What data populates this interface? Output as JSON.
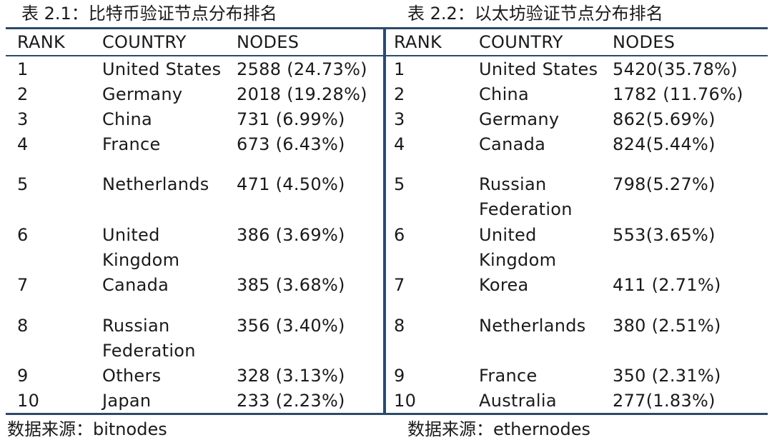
{
  "left_table": {
    "title": "表 2.1：比特币验证节点分布排名",
    "headers": {
      "rank": "RANK",
      "country": "COUNTRY",
      "nodes": "NODES"
    },
    "rows": [
      {
        "rank": "1",
        "country": "United States",
        "nodes": "2588 (24.73%)"
      },
      {
        "rank": "2",
        "country": "Germany",
        "nodes": "2018 (19.28%)"
      },
      {
        "rank": "3",
        "country": "China",
        "nodes": "731 (6.99%)"
      },
      {
        "rank": "4",
        "country": "France",
        "nodes": "673 (6.43%)"
      },
      {
        "rank": "5",
        "country": "Netherlands",
        "nodes": "471 (4.50%)"
      },
      {
        "rank": "6",
        "country": "United Kingdom",
        "nodes": "386 (3.69%)"
      },
      {
        "rank": "7",
        "country": "Canada",
        "nodes": "385 (3.68%)"
      },
      {
        "rank": "8",
        "country": "Russian Federation",
        "nodes": "356 (3.40%)"
      },
      {
        "rank": "9",
        "country": "Others",
        "nodes": "328 (3.13%)"
      },
      {
        "rank": "10",
        "country": "Japan",
        "nodes": "233 (2.23%)"
      }
    ],
    "source": "数据来源：bitnodes"
  },
  "right_table": {
    "title": "表 2.2：以太坊验证节点分布排名",
    "headers": {
      "rank": "RANK",
      "country": "COUNTRY",
      "nodes": "NODES"
    },
    "rows": [
      {
        "rank": "1",
        "country": "United States",
        "nodes": "5420(35.78%)"
      },
      {
        "rank": "2",
        "country": "China",
        "nodes": "1782 (11.76%)"
      },
      {
        "rank": "3",
        "country": "Germany",
        "nodes": "862(5.69%)"
      },
      {
        "rank": "4",
        "country": "Canada",
        "nodes": "824(5.44%)"
      },
      {
        "rank": "5",
        "country": "Russian Federation",
        "nodes": "798(5.27%)"
      },
      {
        "rank": "6",
        "country": "United Kingdom",
        "nodes": "553(3.65%)"
      },
      {
        "rank": "7",
        "country": "Korea",
        "nodes": "411 (2.71%)"
      },
      {
        "rank": "8",
        "country": "Netherlands",
        "nodes": "380 (2.51%)"
      },
      {
        "rank": "9",
        "country": "France",
        "nodes": "350 (2.31%)"
      },
      {
        "rank": "10",
        "country": "Australia",
        "nodes": "277(1.83%)"
      }
    ],
    "source": "数据来源：ethernodes"
  },
  "colors": {
    "rule": "#2d4a6b",
    "text": "#1a1a1a",
    "background": "#ffffff"
  }
}
